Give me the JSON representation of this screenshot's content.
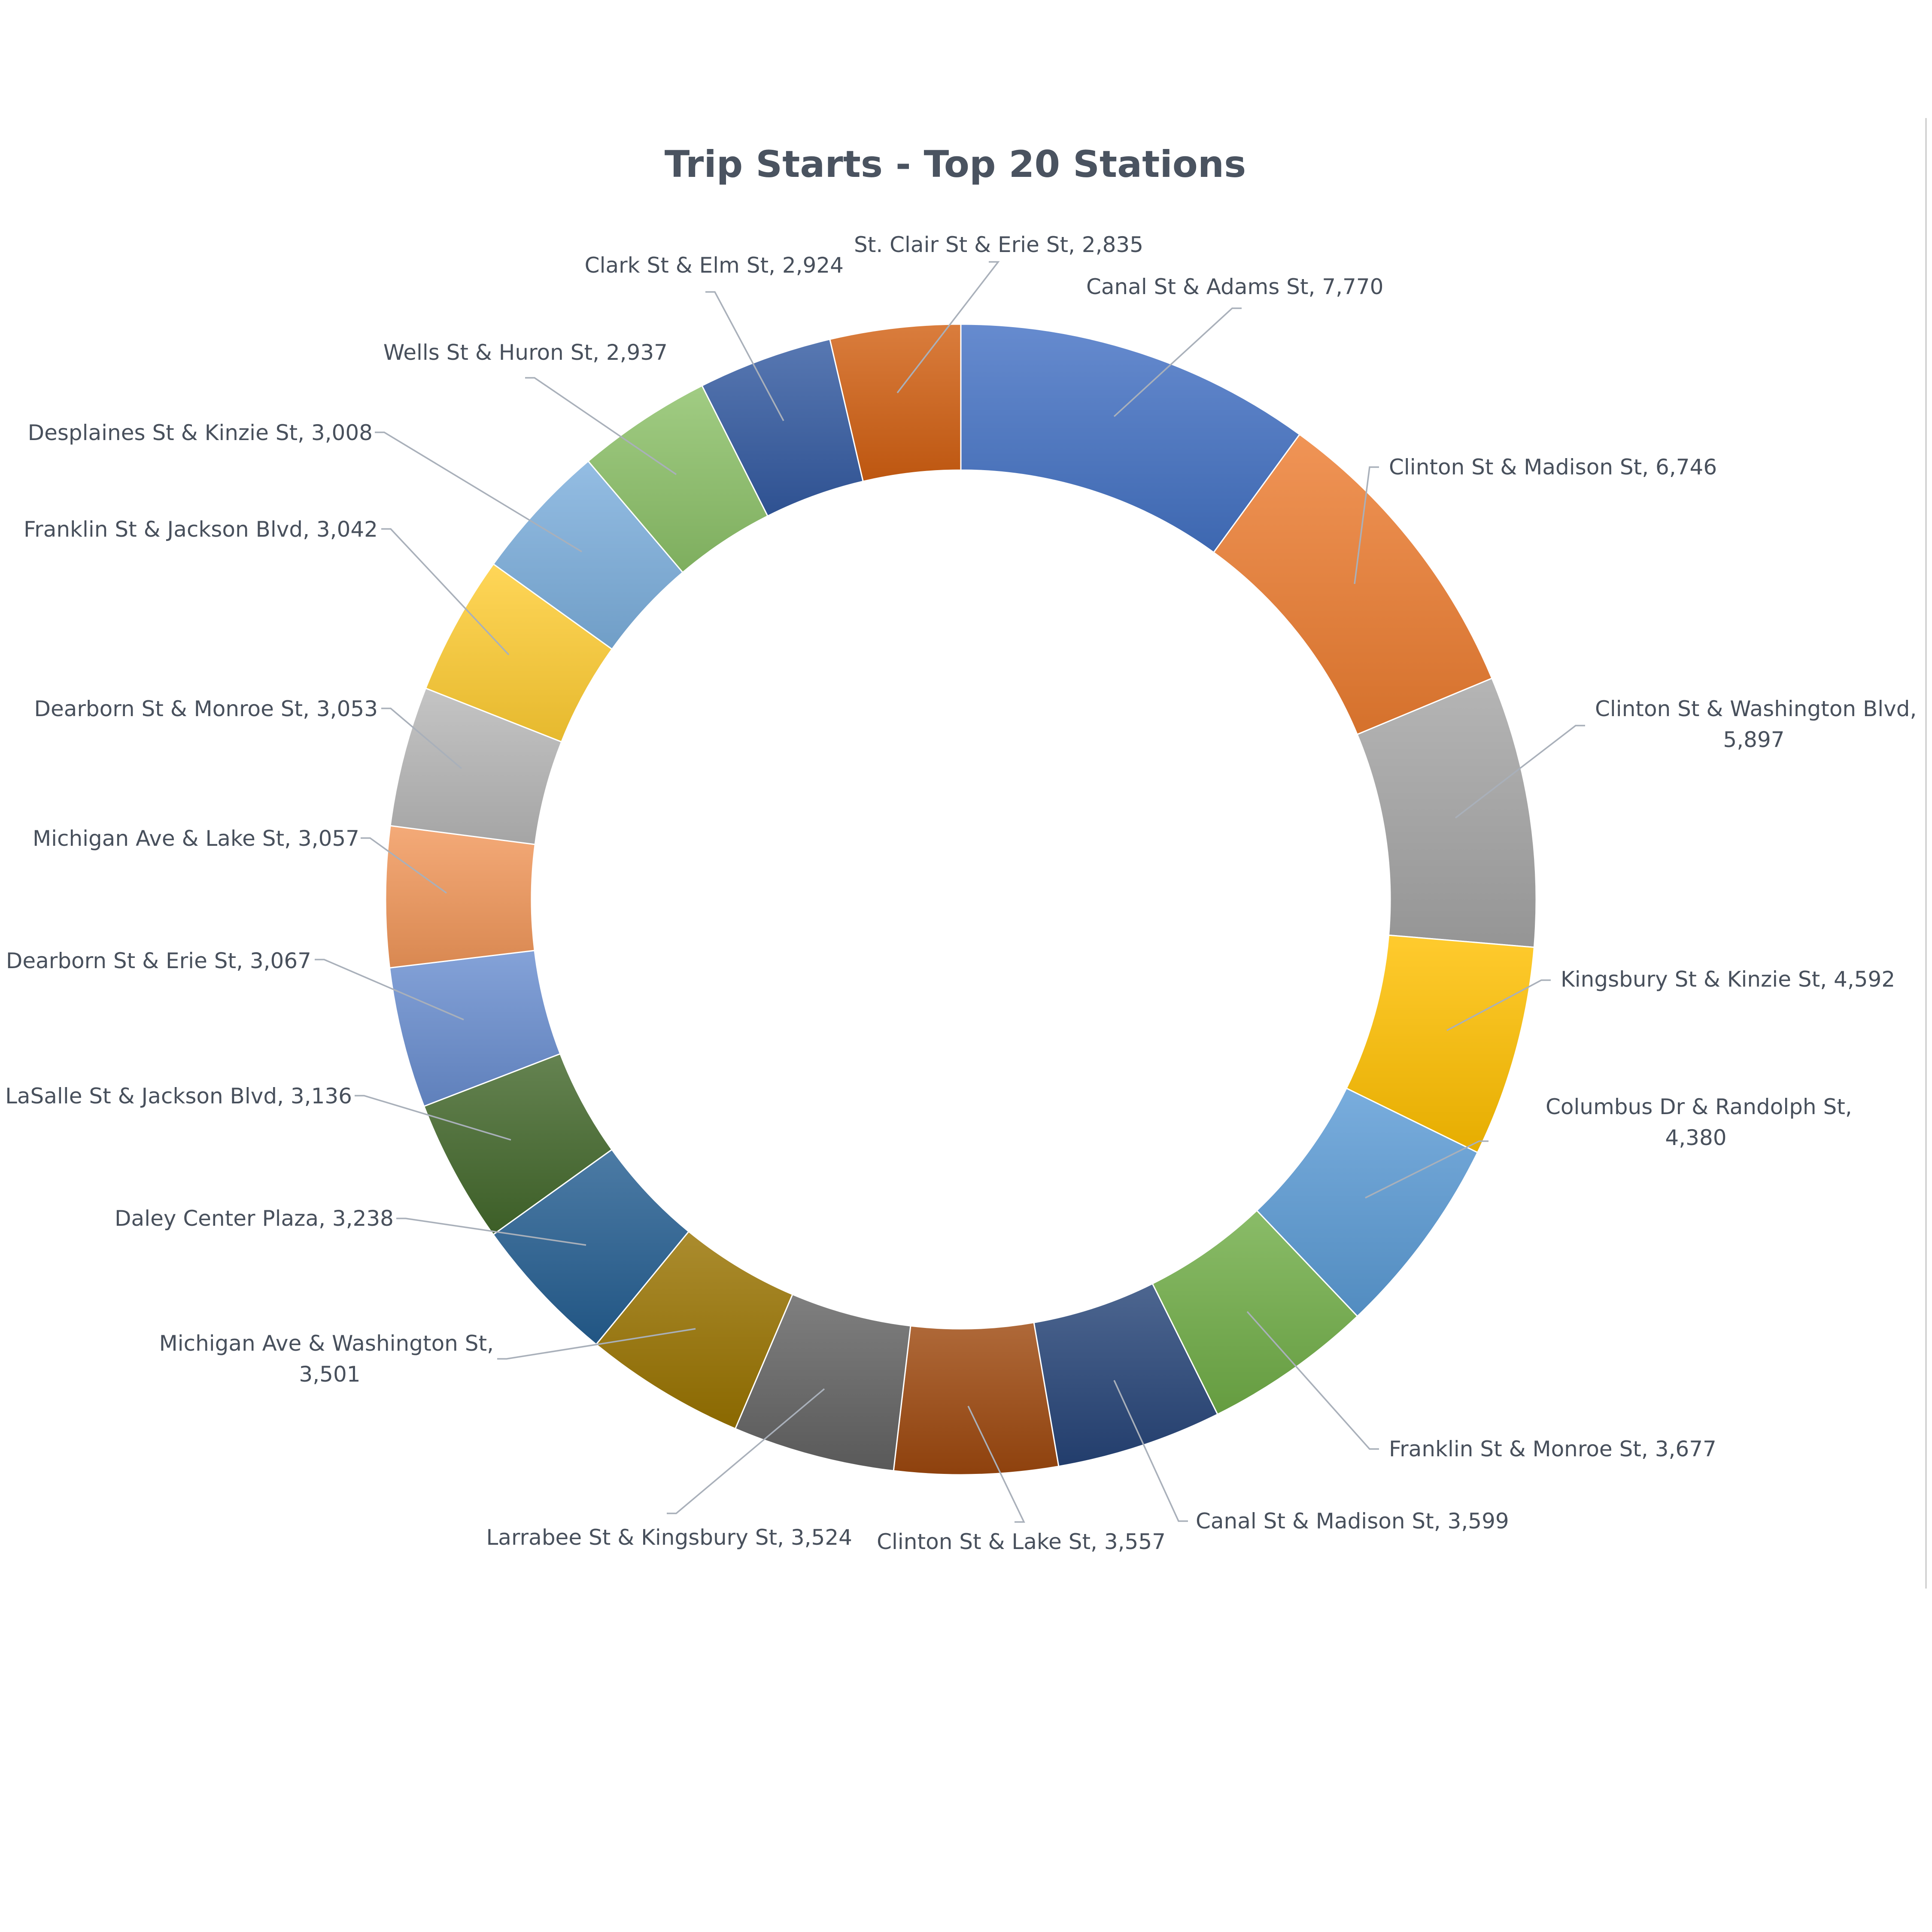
{
  "chart_data": {
    "type": "pie",
    "subtype": "doughnut",
    "title": "Trip Starts - Top 20 Stations",
    "slices": [
      {
        "label": "Canal St & Adams St",
        "value": 7770,
        "display": "7,770",
        "color": "#4472c4"
      },
      {
        "label": "Clinton St & Madison St",
        "value": 6746,
        "display": "6,746",
        "color": "#ed7d31"
      },
      {
        "label": "Clinton St & Washington Blvd",
        "value": 5897,
        "display": "5,897",
        "color": "#a5a5a5"
      },
      {
        "label": "Kingsbury St & Kinzie St",
        "value": 4592,
        "display": "4,592",
        "color": "#ffc000"
      },
      {
        "label": "Columbus Dr & Randolph St",
        "value": 4380,
        "display": "4,380",
        "color": "#5b9bd5"
      },
      {
        "label": "Franklin St & Monroe St",
        "value": 3677,
        "display": "3,677",
        "color": "#70ad47"
      },
      {
        "label": "Canal St & Madison St",
        "value": 3599,
        "display": "3,599",
        "color": "#264478"
      },
      {
        "label": "Clinton St & Lake St",
        "value": 3557,
        "display": "3,557",
        "color": "#9e480e"
      },
      {
        "label": "Larrabee St & Kingsbury St",
        "value": 3524,
        "display": "3,524",
        "color": "#636363"
      },
      {
        "label": "Michigan Ave & Washington St",
        "value": 3501,
        "display": "3,501",
        "color": "#997300"
      },
      {
        "label": "Daley Center Plaza",
        "value": 3238,
        "display": "3,238",
        "color": "#255e91"
      },
      {
        "label": "LaSalle St & Jackson Blvd",
        "value": 3136,
        "display": "3,136",
        "color": "#43682b"
      },
      {
        "label": "Dearborn St & Erie St",
        "value": 3067,
        "display": "3,067",
        "color": "#698ed0"
      },
      {
        "label": "Michigan Ave & Lake St",
        "value": 3057,
        "display": "3,057",
        "color": "#f1975a"
      },
      {
        "label": "Dearborn St & Monroe St",
        "value": 3053,
        "display": "3,053",
        "color": "#b7b7b7"
      },
      {
        "label": "Franklin St & Jackson Blvd",
        "value": 3042,
        "display": "3,042",
        "color": "#ffcd33"
      },
      {
        "label": "Desplaines St & Kinzie St",
        "value": 3008,
        "display": "3,008",
        "color": "#7cafdd"
      },
      {
        "label": "Wells St & Huron St",
        "value": 2937,
        "display": "2,937",
        "color": "#8cc168"
      },
      {
        "label": "Clark St & Elm St",
        "value": 2924,
        "display": "2,924",
        "color": "#335aa1"
      },
      {
        "label": "St. Clair St & Erie St",
        "value": 2835,
        "display": "2,835",
        "color": "#d26012"
      }
    ],
    "legend": "none",
    "data_labels": "category name and value, outside with leader lines"
  }
}
